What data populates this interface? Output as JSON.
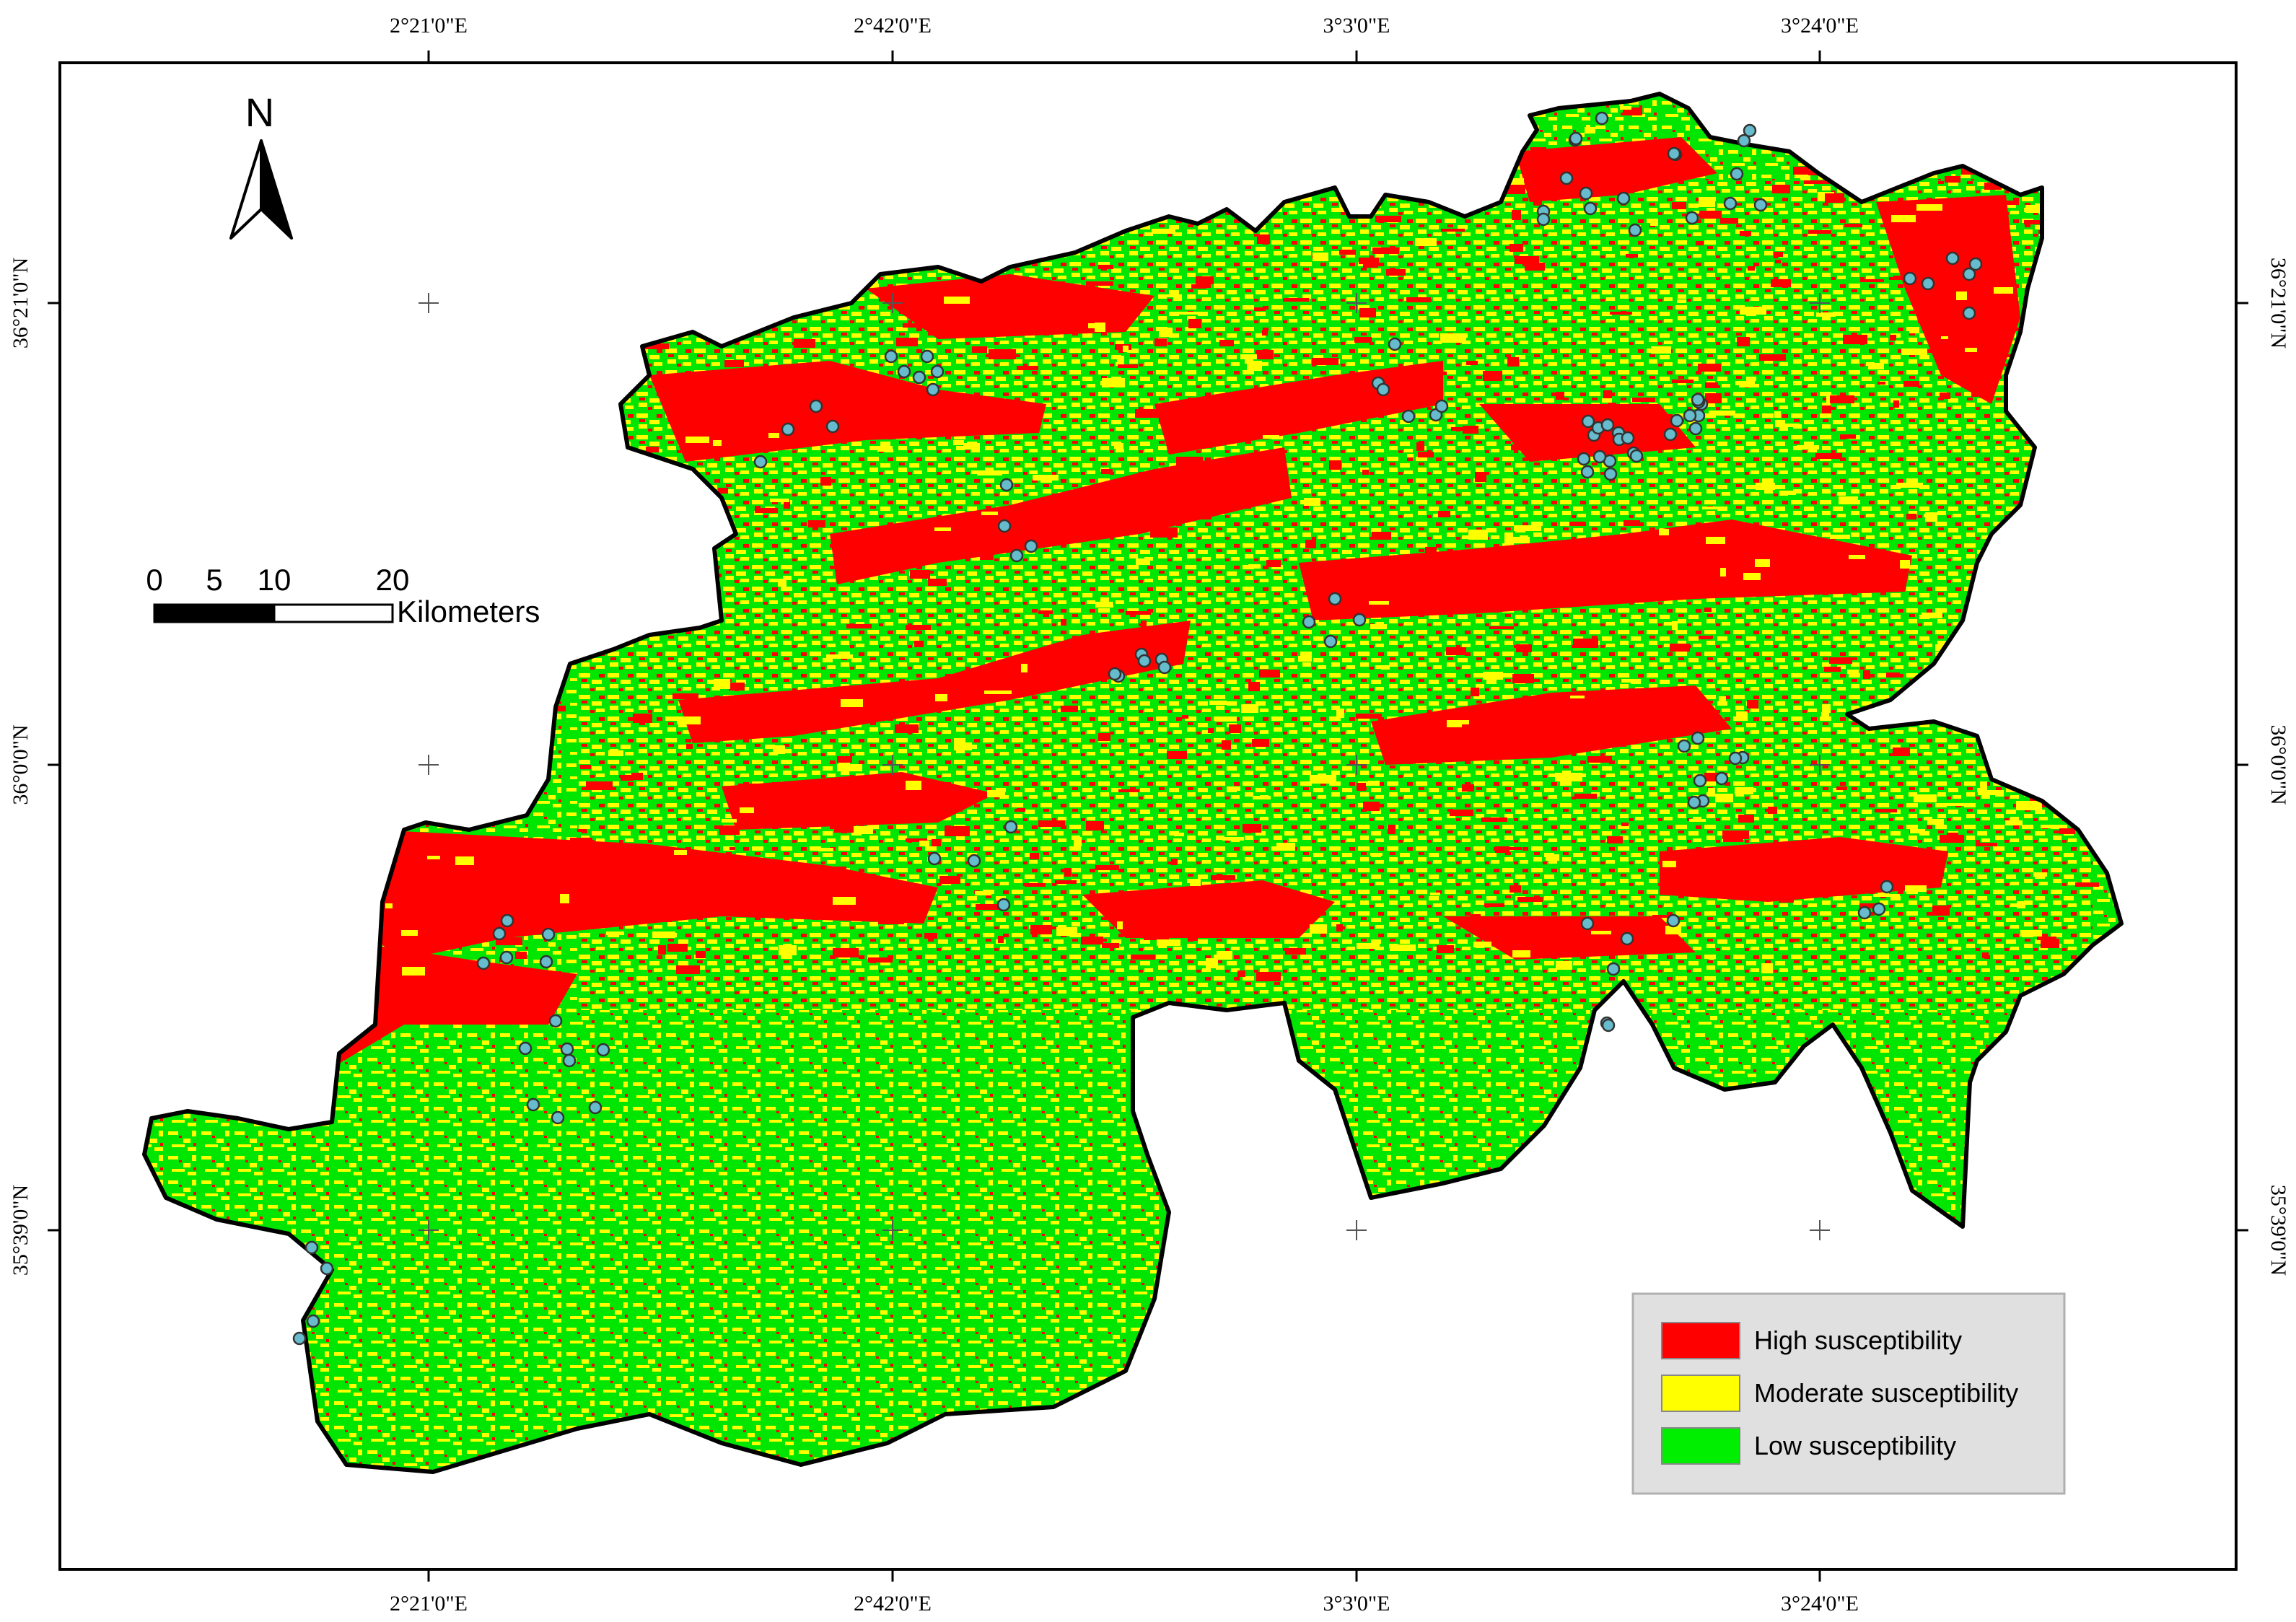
{
  "map": {
    "top_axis_labels": [
      "2°21'0\"E",
      "2°42'0\"E",
      "3°3'0\"E",
      "3°24'0\"E"
    ],
    "bottom_axis_labels": [
      "2°21'0\"E",
      "2°42'0\"E",
      "3°3'0\"E",
      "3°24'0\"E"
    ],
    "left_axis_labels": [
      "36°21'0\"N",
      "36°0'0\"N",
      "35°39'0\"N"
    ],
    "right_axis_labels": [
      "36°21'0\"N",
      "36°0'0\"N",
      "35°39'0\"N"
    ],
    "north_arrow": {
      "label": "N",
      "icon": "north-arrow-icon"
    },
    "scale_bar": {
      "ticks": [
        "0",
        "5",
        "10",
        "20"
      ],
      "unit": "Kilometers"
    },
    "legend": {
      "items": [
        {
          "label": "High susceptibility",
          "color": "#ff0000"
        },
        {
          "label": "Moderate susceptibility",
          "color": "#ffff00"
        },
        {
          "label": "Low susceptibility",
          "color": "#00ee00"
        }
      ]
    },
    "colors": {
      "high": "#ff0000",
      "moderate": "#ffff00",
      "low": "#00e600",
      "point_fill": "#66bbcc",
      "outline": "#000000"
    }
  }
}
